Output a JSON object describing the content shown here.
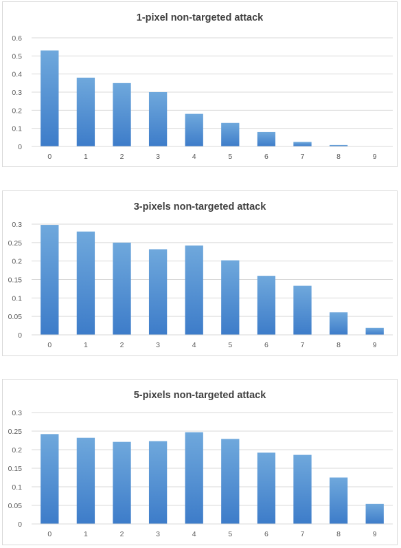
{
  "colors": {
    "bar_top": "#6fa8dc",
    "bar_bottom": "#3d7cc9",
    "grid": "#d9d9d9",
    "title_text": "#404040",
    "tick_text": "#595959"
  },
  "chart_data": [
    {
      "type": "bar",
      "title": "1-pixel non-targeted attack",
      "xlabel": "",
      "ylabel": "",
      "categories": [
        "0",
        "1",
        "2",
        "3",
        "4",
        "5",
        "6",
        "7",
        "8",
        "9"
      ],
      "values": [
        0.53,
        0.38,
        0.35,
        0.3,
        0.18,
        0.13,
        0.08,
        0.025,
        0.008,
        0.0
      ],
      "ylim": [
        0,
        0.6
      ],
      "yticks": [
        "0",
        "0.1",
        "0.2",
        "0.3",
        "0.4",
        "0.5",
        "0.6"
      ],
      "grid": true,
      "legend": "none"
    },
    {
      "type": "bar",
      "title": "3-pixels non-targeted attack",
      "xlabel": "",
      "ylabel": "",
      "categories": [
        "0",
        "1",
        "2",
        "3",
        "4",
        "5",
        "6",
        "7",
        "8",
        "9"
      ],
      "values": [
        0.298,
        0.28,
        0.25,
        0.232,
        0.242,
        0.202,
        0.16,
        0.133,
        0.061,
        0.019
      ],
      "ylim": [
        0,
        0.3
      ],
      "yticks": [
        "0",
        "0.05",
        "0.1",
        "0.15",
        "0.2",
        "0.25",
        "0.3"
      ],
      "grid": true,
      "legend": "none"
    },
    {
      "type": "bar",
      "title": "5-pixels non-targeted attack",
      "xlabel": "",
      "ylabel": "",
      "categories": [
        "0",
        "1",
        "2",
        "3",
        "4",
        "5",
        "6",
        "7",
        "8",
        "9"
      ],
      "values": [
        0.242,
        0.232,
        0.221,
        0.223,
        0.247,
        0.229,
        0.192,
        0.186,
        0.125,
        0.054
      ],
      "ylim": [
        0,
        0.3
      ],
      "yticks": [
        "0",
        "0.05",
        "0.1",
        "0.15",
        "0.2",
        "0.25",
        "0.3"
      ],
      "grid": true,
      "legend": "none"
    }
  ]
}
